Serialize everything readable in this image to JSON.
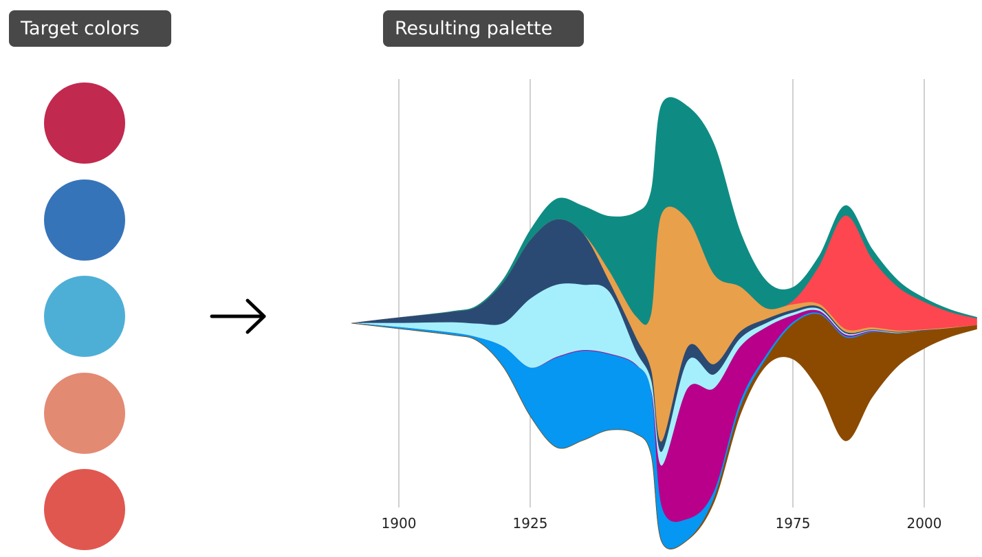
{
  "labels": {
    "target": "Target colors",
    "result": "Resulting palette"
  },
  "target_colors": [
    "#c2294f",
    "#3674b9",
    "#4eafd6",
    "#e38a73",
    "#e0574f"
  ],
  "arrow_icon": "right-arrow-icon",
  "chart_data": {
    "type": "area",
    "subtype": "streamgraph",
    "title": "",
    "xlabel": "",
    "ylabel": "",
    "xlim": [
      1891,
      2010
    ],
    "x_ticks": [
      1900,
      1925,
      1975,
      2000
    ],
    "x_tick_labels": [
      "1900",
      "1925",
      "1975",
      "2000"
    ],
    "grid": "vertical",
    "x": [
      1891,
      1900,
      1910,
      1915,
      1920,
      1925,
      1930,
      1935,
      1940,
      1945,
      1948,
      1950,
      1955,
      1960,
      1965,
      1970,
      1975,
      1980,
      1985,
      1990,
      1995,
      2000,
      2005,
      2010
    ],
    "series": [
      {
        "name": "teal",
        "color": "#0e8c84",
        "values": [
          0,
          0,
          1,
          2,
          5,
          15,
          30,
          40,
          80,
          150,
          180,
          160,
          165,
          190,
          80,
          40,
          20,
          15,
          15,
          15,
          10,
          6,
          4,
          2
        ]
      },
      {
        "name": "red",
        "color": "#fd4650",
        "values": [
          0,
          0,
          0,
          0,
          0,
          0,
          0,
          0,
          0,
          0,
          0,
          0,
          0,
          0,
          0,
          0,
          5,
          55,
          165,
          100,
          63,
          40,
          22,
          10
        ]
      },
      {
        "name": "orange",
        "color": "#e9a04a",
        "values": [
          0,
          0,
          0,
          0,
          0,
          0,
          0,
          0,
          15,
          30,
          80,
          330,
          185,
          130,
          65,
          15,
          8,
          4,
          4,
          3,
          2,
          1,
          1,
          0
        ]
      },
      {
        "name": "navy",
        "color": "#2a4a73",
        "values": [
          0,
          8,
          15,
          25,
          60,
          85,
          95,
          75,
          15,
          20,
          15,
          15,
          20,
          15,
          10,
          6,
          4,
          3,
          2,
          1,
          1,
          1,
          0,
          0
        ]
      },
      {
        "name": "cyan",
        "color": "#a5effc",
        "values": [
          0,
          6,
          15,
          20,
          35,
          100,
          105,
          95,
          90,
          20,
          15,
          20,
          40,
          20,
          12,
          6,
          4,
          3,
          2,
          1,
          1,
          0,
          0,
          0
        ]
      },
      {
        "name": "magenta",
        "color": "#b8008a",
        "values": [
          0,
          0,
          0,
          0,
          0,
          0,
          1,
          1,
          1,
          1,
          2,
          60,
          190,
          150,
          80,
          40,
          10,
          3,
          2,
          1,
          0,
          0,
          0,
          0
        ]
      },
      {
        "name": "blue",
        "color": "#0597f2",
        "values": [
          0,
          2,
          3,
          5,
          30,
          70,
          130,
          130,
          110,
          100,
          90,
          50,
          30,
          10,
          8,
          5,
          3,
          2,
          2,
          1,
          0,
          0,
          0,
          0
        ]
      },
      {
        "name": "brown",
        "color": "#8b4a00",
        "values": [
          0,
          0,
          0,
          0,
          0,
          0,
          0,
          0,
          0,
          0,
          0,
          0,
          0,
          5,
          10,
          10,
          50,
          110,
          150,
          95,
          47,
          25,
          12,
          5
        ]
      }
    ]
  }
}
